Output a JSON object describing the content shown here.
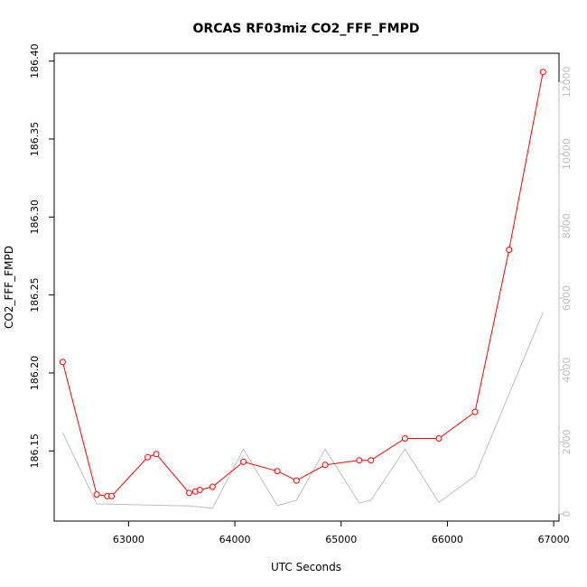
{
  "chart_data": {
    "type": "line",
    "title": "ORCAS RF03miz CO2_FFF_FMPD",
    "xlabel": "UTC Seconds",
    "ylabel": "CO2_FFF_FMPD",
    "xlim": [
      62300,
      67050
    ],
    "ylim": [
      186.105,
      186.405
    ],
    "y2lim": [
      -200,
      12800
    ],
    "x_ticks": [
      63000,
      64000,
      65000,
      66000,
      67000
    ],
    "y_ticks": [
      186.15,
      186.2,
      186.25,
      186.3,
      186.35,
      186.4
    ],
    "y_tick_labels": [
      "186.15",
      "186.20",
      "186.25",
      "186.30",
      "186.35",
      "186.40"
    ],
    "y2_ticks": [
      0,
      2000,
      4000,
      6000,
      8000,
      10000,
      12000
    ],
    "grid": false,
    "series": [
      {
        "axis": "left",
        "color": "#ff0000",
        "marker": "open-circle",
        "x": [
          62380,
          62700,
          62800,
          62840,
          63180,
          63260,
          63570,
          63630,
          63670,
          63790,
          64080,
          64400,
          64580,
          64850,
          65170,
          65280,
          65600,
          65920,
          66260,
          66580,
          66900
        ],
        "y": [
          186.207,
          186.122,
          186.121,
          186.121,
          186.146,
          186.148,
          186.123,
          186.124,
          186.125,
          186.127,
          186.143,
          186.137,
          186.131,
          186.141,
          186.144,
          186.144,
          186.158,
          186.158,
          186.175,
          186.279,
          186.393
        ]
      },
      {
        "axis": "right",
        "color": "#bebebe",
        "marker": "none",
        "x": [
          62380,
          62700,
          63570,
          63790,
          64080,
          64400,
          64580,
          64850,
          65170,
          65280,
          65600,
          65920,
          66260,
          66900
        ],
        "y": [
          2250,
          280,
          220,
          160,
          1800,
          230,
          380,
          1800,
          300,
          380,
          1800,
          320,
          1050,
          5600
        ]
      }
    ]
  }
}
